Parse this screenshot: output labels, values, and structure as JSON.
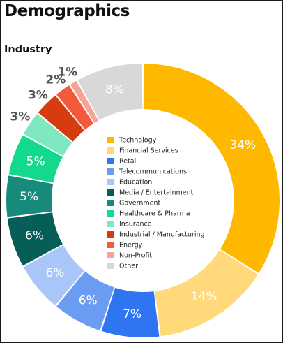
{
  "page": {
    "title": "Demographics",
    "subtitle": "Industry"
  },
  "chart_data": {
    "type": "pie",
    "title": "Industry",
    "donut": true,
    "legend_placement": "center",
    "slices": [
      {
        "label": "Technology",
        "value": 34,
        "display": "34%",
        "color": "#FFB800",
        "text_color": "#ffffff",
        "label_inside": true
      },
      {
        "label": "Financial Services",
        "value": 14,
        "display": "14%",
        "color": "#FFD97A",
        "text_color": "#ffffff",
        "label_inside": true
      },
      {
        "label": "Retail",
        "value": 7,
        "display": "7%",
        "color": "#2F74F0",
        "text_color": "#ffffff",
        "label_inside": true
      },
      {
        "label": "Telecommunications",
        "value": 6,
        "display": "6%",
        "color": "#6A9CF2",
        "text_color": "#ffffff",
        "label_inside": true
      },
      {
        "label": "Education",
        "value": 6,
        "display": "6%",
        "color": "#AAC5F7",
        "text_color": "#ffffff",
        "label_inside": true
      },
      {
        "label": "Media / Entertainment",
        "value": 6,
        "display": "6%",
        "color": "#075E57",
        "text_color": "#ffffff",
        "label_inside": true
      },
      {
        "label": "Government",
        "value": 5,
        "display": "5%",
        "color": "#178A7B",
        "text_color": "#ffffff",
        "label_inside": true
      },
      {
        "label": "Healthcare & Pharma",
        "value": 5,
        "display": "5%",
        "color": "#12D98C",
        "text_color": "#ffffff",
        "label_inside": true
      },
      {
        "label": "Insurance",
        "value": 3,
        "display": "3%",
        "color": "#7FE8C0",
        "text_color": "#555555",
        "label_inside": false
      },
      {
        "label": "Industrial / Manufacturing",
        "value": 3,
        "display": "3%",
        "color": "#D63C0E",
        "text_color": "#555555",
        "label_inside": false
      },
      {
        "label": "Energy",
        "value": 2,
        "display": "2%",
        "color": "#F45A3A",
        "text_color": "#555555",
        "label_inside": false
      },
      {
        "label": "Non-Profit",
        "value": 1,
        "display": "1%",
        "color": "#F7A496",
        "text_color": "#555555",
        "label_inside": false
      },
      {
        "label": "Other",
        "value": 8,
        "display": "8%",
        "color": "#D8D8D8",
        "text_color": "#ffffff",
        "label_inside": true
      }
    ]
  }
}
